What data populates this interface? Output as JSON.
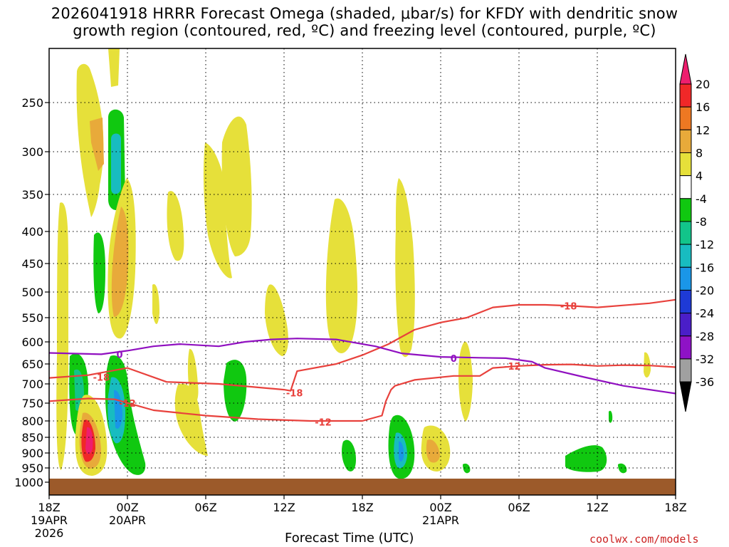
{
  "title_line1": "2026041918 HRRR Forecast Omega (shaded, μbar/s) for KFDY with dendritic snow",
  "title_line2": "growth region (contoured, red, ºC) and freezing level (contoured, purple, ºC)",
  "xlabel": "Forecast Time (UTC)",
  "credit": "coolwx.com/models",
  "colors": {
    "red_contour": "#e8413c",
    "purple_contour": "#9010c0",
    "ground": "#9c5a2a"
  },
  "chart_data": {
    "type": "heatmap",
    "y_ticks": [
      "250",
      "300",
      "350",
      "400",
      "450",
      "500",
      "550",
      "600",
      "650",
      "700",
      "750",
      "800",
      "850",
      "900",
      "950",
      "1000"
    ],
    "x_ticks": [
      {
        "label": "18Z",
        "sub1": "19APR",
        "sub2": "2026"
      },
      {
        "label": "00Z",
        "sub1": "20APR",
        "sub2": ""
      },
      {
        "label": "06Z",
        "sub1": "",
        "sub2": ""
      },
      {
        "label": "12Z",
        "sub1": "",
        "sub2": ""
      },
      {
        "label": "18Z",
        "sub1": "",
        "sub2": ""
      },
      {
        "label": "00Z",
        "sub1": "21APR",
        "sub2": ""
      },
      {
        "label": "06Z",
        "sub1": "",
        "sub2": ""
      },
      {
        "label": "12Z",
        "sub1": "",
        "sub2": ""
      },
      {
        "label": "18Z",
        "sub1": "",
        "sub2": ""
      }
    ],
    "x_range_hours": [
      0,
      48
    ],
    "y_range_hPa": [
      200,
      1000
    ],
    "colorbar": {
      "labels": [
        "20",
        "16",
        "12",
        "8",
        "4",
        "-4",
        "-8",
        "-12",
        "-16",
        "-20",
        "-24",
        "-28",
        "-32",
        "-36"
      ],
      "colors": [
        "#ee1e6e",
        "#f02828",
        "#ee7822",
        "#e8aa3a",
        "#e6e03a",
        "#ffffff",
        "#10c810",
        "#12c48a",
        "#18bcc0",
        "#1a96e8",
        "#1e3ad6",
        "#4a1ec8",
        "#8e12c6",
        "#a0a0a0",
        "#000000"
      ]
    },
    "contours": [
      {
        "label": "-18",
        "color": "red",
        "points": [
          [
            0,
            685
          ],
          [
            3,
            678
          ],
          [
            6,
            660
          ],
          [
            9,
            695
          ],
          [
            13,
            700
          ],
          [
            18,
            715
          ],
          [
            18.5,
            718
          ],
          [
            19,
            668
          ],
          [
            22,
            650
          ],
          [
            24,
            630
          ],
          [
            26,
            605
          ],
          [
            28,
            575
          ],
          [
            30,
            560
          ],
          [
            32,
            550
          ],
          [
            34,
            530
          ],
          [
            36,
            525
          ],
          [
            38,
            525
          ],
          [
            40,
            527
          ],
          [
            42,
            530
          ],
          [
            44,
            526
          ],
          [
            46,
            522
          ],
          [
            48,
            515
          ]
        ],
        "label_pos": [
          [
            4,
            683
          ],
          [
            18.8,
            723
          ],
          [
            39.8,
            527
          ]
        ]
      },
      {
        "label": "-12",
        "color": "red",
        "points": [
          [
            0,
            745
          ],
          [
            3,
            738
          ],
          [
            5,
            740
          ],
          [
            8,
            770
          ],
          [
            12,
            785
          ],
          [
            16,
            795
          ],
          [
            20,
            800
          ],
          [
            24,
            800
          ],
          [
            25.5,
            785
          ],
          [
            25.8,
            745
          ],
          [
            26.2,
            715
          ],
          [
            26.5,
            705
          ],
          [
            28,
            690
          ],
          [
            31,
            680
          ],
          [
            33,
            680
          ],
          [
            34,
            660
          ],
          [
            36,
            655
          ],
          [
            38,
            652
          ],
          [
            40,
            651
          ],
          [
            42,
            655
          ],
          [
            44,
            653
          ],
          [
            46,
            654
          ],
          [
            48,
            658
          ]
        ],
        "label_pos": [
          [
            6,
            750
          ],
          [
            21,
            803
          ],
          [
            35.5,
            655
          ]
        ]
      },
      {
        "label": "0",
        "color": "purple",
        "points": [
          [
            0,
            625
          ],
          [
            4,
            628
          ],
          [
            6,
            620
          ],
          [
            8,
            610
          ],
          [
            10,
            605
          ],
          [
            13,
            610
          ],
          [
            15,
            600
          ],
          [
            17,
            595
          ],
          [
            19,
            593
          ],
          [
            22,
            595
          ],
          [
            25,
            610
          ],
          [
            27,
            626
          ],
          [
            30,
            634
          ],
          [
            33,
            636
          ],
          [
            35,
            637
          ],
          [
            37,
            645
          ],
          [
            38,
            660
          ],
          [
            41,
            683
          ],
          [
            44,
            705
          ],
          [
            47,
            720
          ],
          [
            48,
            725
          ]
        ],
        "label_pos": [
          [
            5.4,
            628
          ],
          [
            31,
            637
          ]
        ]
      }
    ]
  }
}
